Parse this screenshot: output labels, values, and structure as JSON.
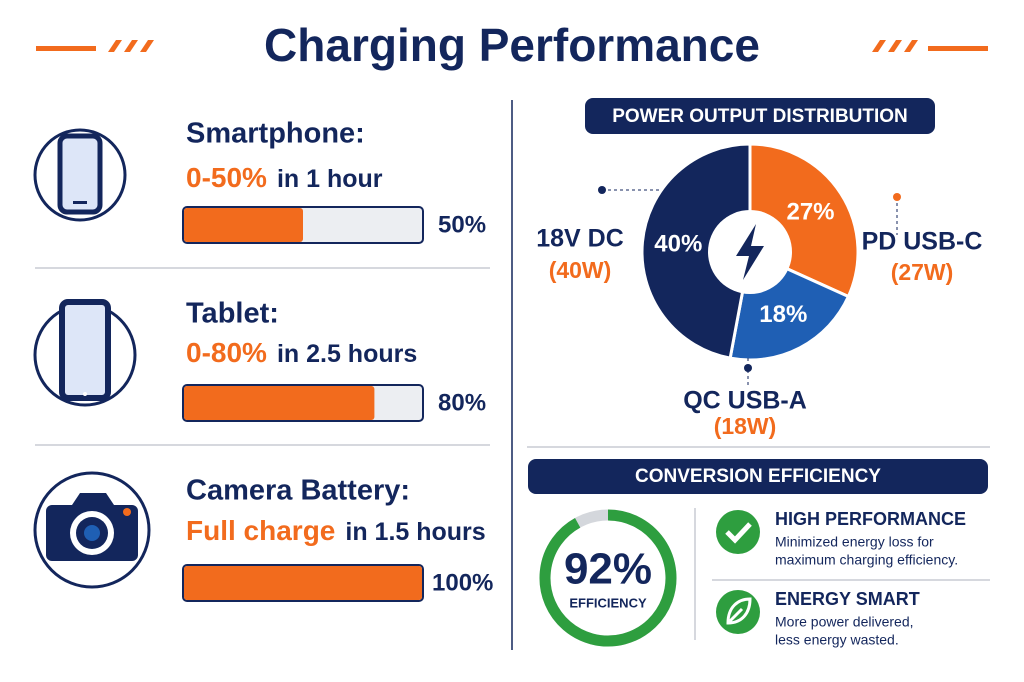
{
  "header": {
    "title": "Charging Performance"
  },
  "devices": [
    {
      "name": "Smartphone:",
      "range": "0-50%",
      "time": "in 1 hour",
      "progress": {
        "value": 50,
        "label": "50%"
      }
    },
    {
      "name": "Tablet:",
      "range": "0-80%",
      "time": "in 2.5 hours",
      "progress": {
        "value": 80,
        "label": "80%"
      }
    },
    {
      "name": "Camera Battery:",
      "range": "Full charge",
      "time": "in 1.5 hours",
      "progress": {
        "value": 100,
        "label": "100%"
      }
    }
  ],
  "power_output": {
    "title": "POWER OUTPUT DISTRIBUTION",
    "segments": [
      {
        "name": "PD USB-C",
        "watts": "(27W)",
        "value": 27,
        "label": "27%",
        "color": "#f26b1d"
      },
      {
        "name": "QC USB-A",
        "watts": "(18W)",
        "value": 18,
        "label": "18%",
        "color": "#1f5fb4"
      },
      {
        "name": "18V DC",
        "watts": "(40W)",
        "value": 40,
        "label": "40%",
        "color": "#13265c"
      }
    ]
  },
  "efficiency": {
    "title": "CONVERSION EFFICIENCY",
    "value": 92,
    "label": "92%",
    "caption": "EFFICIENCY",
    "features": [
      {
        "title": "HIGH PERFORMANCE",
        "lines": [
          "Minimized energy loss for",
          "maximum charging efficiency."
        ]
      },
      {
        "title": "ENERGY SMART",
        "lines": [
          "More power delivered,",
          "less energy wasted."
        ]
      }
    ]
  }
}
